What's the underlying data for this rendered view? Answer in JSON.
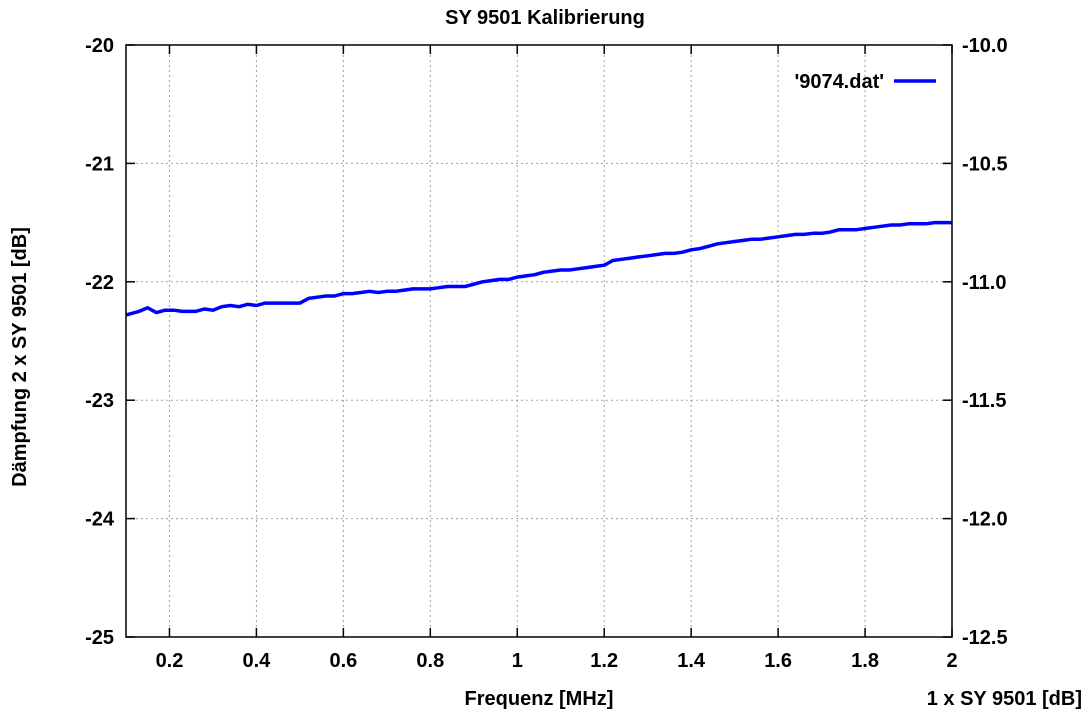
{
  "chart_data": {
    "type": "line",
    "title": "SY 9501 Kalibrierung",
    "xlabel": "Frequenz [MHz]",
    "ylabel": "Dämpfung 2 x SY 9501 [dB]",
    "y2label": "1 x SY 9501 [dB]",
    "xlim": [
      0.1,
      2.0
    ],
    "ylim": [
      -25,
      -20
    ],
    "y2lim": [
      -12.5,
      -10.0
    ],
    "x_ticks": [
      0.2,
      0.4,
      0.6,
      0.8,
      1.0,
      1.2,
      1.4,
      1.6,
      1.8,
      2.0
    ],
    "x_tick_labels": [
      "0.2",
      "0.4",
      "0.6",
      "0.8",
      "1",
      "1.2",
      "1.4",
      "1.6",
      "1.8",
      "2"
    ],
    "y_ticks": [
      -20,
      -21,
      -22,
      -23,
      -24,
      -25
    ],
    "y_tick_labels": [
      "-20",
      "-21",
      "-22",
      "-23",
      "-24",
      "-25"
    ],
    "y2_ticks": [
      -10.0,
      -10.5,
      -11.0,
      -11.5,
      -12.0,
      -12.5
    ],
    "y2_tick_labels": [
      "-10.0",
      "-10.5",
      "-11.0",
      "-11.5",
      "-12.0",
      "-12.5"
    ],
    "grid": true,
    "legend_position": "top-right",
    "series": [
      {
        "name": "'9074.dat'",
        "color": "#0000ff",
        "x": [
          0.1,
          0.13,
          0.15,
          0.17,
          0.19,
          0.21,
          0.23,
          0.26,
          0.28,
          0.3,
          0.32,
          0.34,
          0.36,
          0.38,
          0.4,
          0.42,
          0.44,
          0.46,
          0.48,
          0.5,
          0.52,
          0.54,
          0.56,
          0.58,
          0.6,
          0.62,
          0.64,
          0.66,
          0.68,
          0.7,
          0.72,
          0.74,
          0.76,
          0.78,
          0.8,
          0.82,
          0.84,
          0.86,
          0.88,
          0.9,
          0.92,
          0.94,
          0.96,
          0.98,
          1.0,
          1.02,
          1.04,
          1.06,
          1.08,
          1.1,
          1.12,
          1.14,
          1.16,
          1.18,
          1.2,
          1.22,
          1.24,
          1.26,
          1.28,
          1.3,
          1.32,
          1.34,
          1.36,
          1.38,
          1.4,
          1.42,
          1.44,
          1.46,
          1.48,
          1.5,
          1.52,
          1.54,
          1.56,
          1.58,
          1.6,
          1.62,
          1.64,
          1.66,
          1.68,
          1.7,
          1.72,
          1.74,
          1.76,
          1.78,
          1.8,
          1.82,
          1.84,
          1.86,
          1.88,
          1.9,
          1.92,
          1.94,
          1.96,
          1.98,
          2.0
        ],
        "y": [
          -22.28,
          -22.25,
          -22.22,
          -22.26,
          -22.24,
          -22.24,
          -22.25,
          -22.25,
          -22.23,
          -22.24,
          -22.21,
          -22.2,
          -22.21,
          -22.19,
          -22.2,
          -22.18,
          -22.18,
          -22.18,
          -22.18,
          -22.18,
          -22.14,
          -22.13,
          -22.12,
          -22.12,
          -22.1,
          -22.1,
          -22.09,
          -22.08,
          -22.09,
          -22.08,
          -22.08,
          -22.07,
          -22.06,
          -22.06,
          -22.06,
          -22.05,
          -22.04,
          -22.04,
          -22.04,
          -22.02,
          -22.0,
          -21.99,
          -21.98,
          -21.98,
          -21.96,
          -21.95,
          -21.94,
          -21.92,
          -21.91,
          -21.9,
          -21.9,
          -21.89,
          -21.88,
          -21.87,
          -21.86,
          -21.82,
          -21.81,
          -21.8,
          -21.79,
          -21.78,
          -21.77,
          -21.76,
          -21.76,
          -21.75,
          -21.73,
          -21.72,
          -21.7,
          -21.68,
          -21.67,
          -21.66,
          -21.65,
          -21.64,
          -21.64,
          -21.63,
          -21.62,
          -21.61,
          -21.6,
          -21.6,
          -21.59,
          -21.59,
          -21.58,
          -21.56,
          -21.56,
          -21.56,
          -21.55,
          -21.54,
          -21.53,
          -21.52,
          -21.52,
          -21.51,
          -21.51,
          -21.51,
          -21.5,
          -21.5,
          -21.5
        ]
      }
    ]
  }
}
